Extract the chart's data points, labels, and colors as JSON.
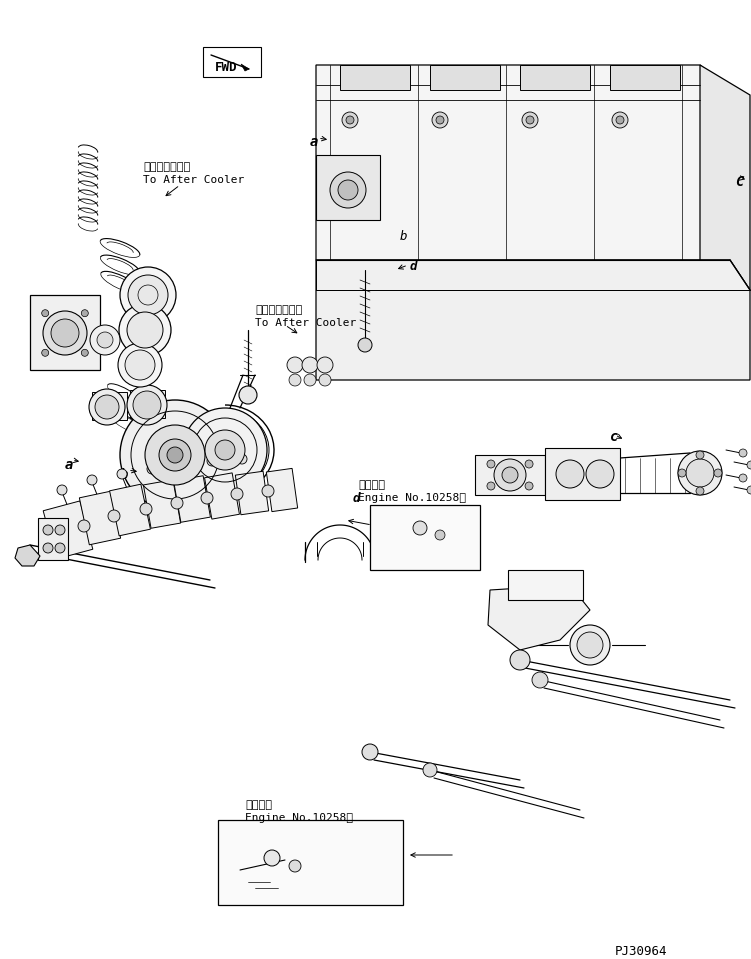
{
  "fig_width": 7.51,
  "fig_height": 9.59,
  "dpi": 100,
  "bg_color": "#ffffff",
  "lc": "#000000",
  "title_code": "PJ30964",
  "after_cooler_1_jp": "アフタクーラヘ",
  "after_cooler_1_en": "To After Cooler",
  "after_cooler_2_jp": "アフタクーラヘ",
  "after_cooler_2_en": "To After Cooler",
  "applicable_jp": "適用号機",
  "applicable_en": "Engine No.10258～",
  "fwd": "FWD",
  "label_a": "a",
  "label_b": "b",
  "label_c_lower": "c",
  "label_C_upper": "C",
  "label_d": "d"
}
